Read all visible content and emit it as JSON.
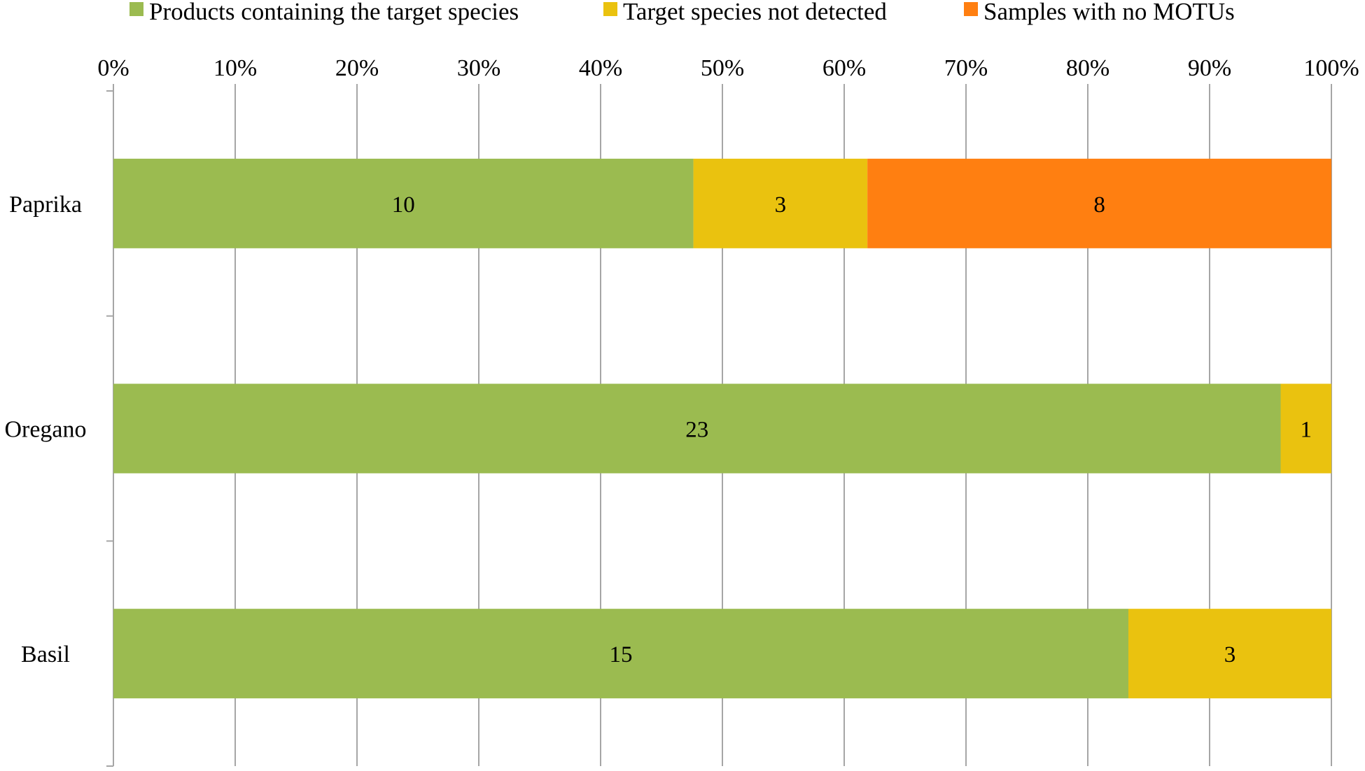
{
  "chart_data": {
    "type": "bar",
    "orientation": "horizontal",
    "stacked": "percent",
    "categories": [
      "Paprika",
      "Oregano",
      "Basil"
    ],
    "series": [
      {
        "name": "Products containing the target species",
        "values": [
          10,
          23,
          15
        ],
        "color": "#9BBB50"
      },
      {
        "name": "Target species not detected",
        "values": [
          3,
          1,
          3
        ],
        "color": "#EAC20F"
      },
      {
        "name": "Samples with no MOTUs",
        "values": [
          8,
          0,
          0
        ],
        "color": "#FF7F11"
      }
    ],
    "xlim": [
      0,
      100
    ],
    "x_ticks": [
      "0%",
      "10%",
      "20%",
      "30%",
      "40%",
      "50%",
      "60%",
      "70%",
      "80%",
      "90%",
      "100%"
    ],
    "x_axis_position": "top",
    "grid": true,
    "legend_position": "top",
    "grid_color": "#A6A6A6",
    "title": "",
    "xlabel": "",
    "ylabel": ""
  }
}
